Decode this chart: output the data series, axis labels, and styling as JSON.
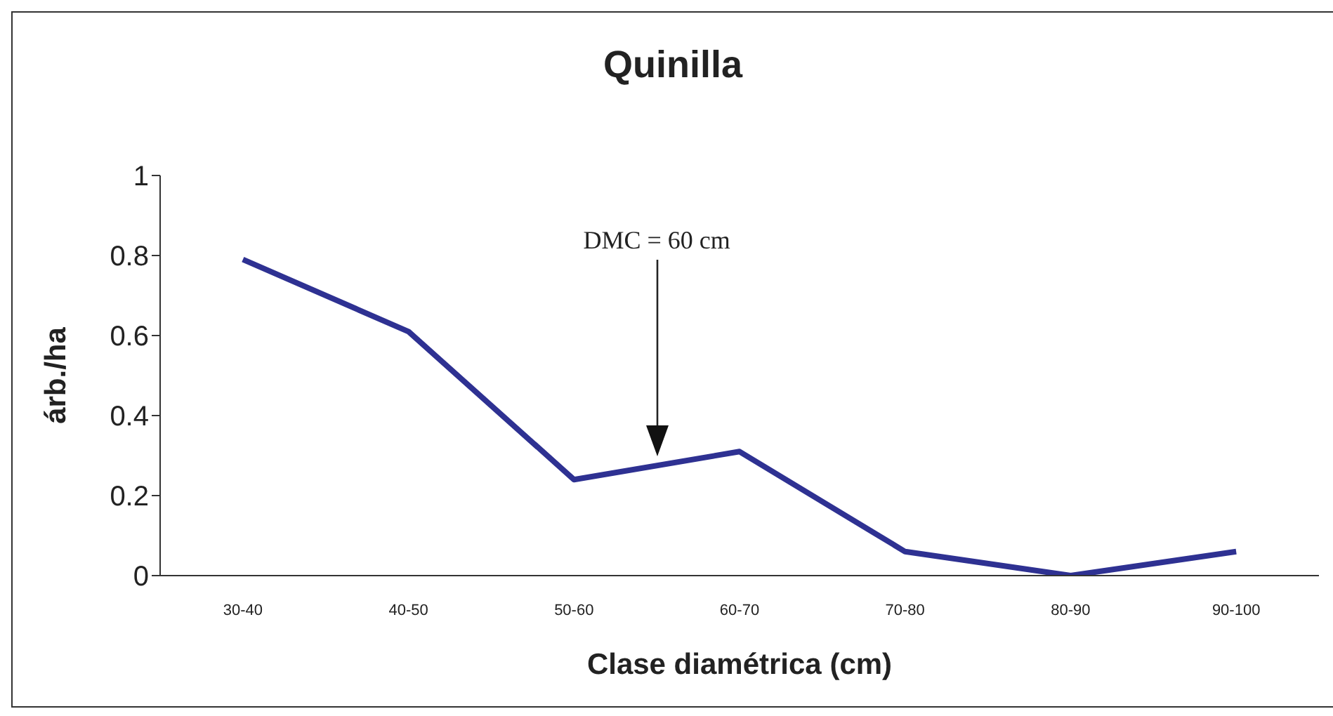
{
  "chart_data": {
    "type": "line",
    "title": "Quinilla",
    "xlabel": "Clase diamétrica (cm)",
    "ylabel": "árb./ha",
    "categories": [
      "30-40",
      "40-50",
      "50-60",
      "60-70",
      "70-80",
      "80-90",
      "90-100"
    ],
    "series": [
      {
        "color": "#2e3192",
        "values": [
          0.79,
          0.61,
          0.24,
          0.31,
          0.06,
          0,
          0.06
        ]
      }
    ],
    "ylim": [
      0,
      1
    ],
    "yticks": [
      0,
      0.2,
      0.4,
      0.6,
      0.8,
      1
    ],
    "grid": false,
    "legend": false,
    "marker": "none",
    "line_style": "solid",
    "annotations": [
      "DMC = 60 cm"
    ]
  }
}
